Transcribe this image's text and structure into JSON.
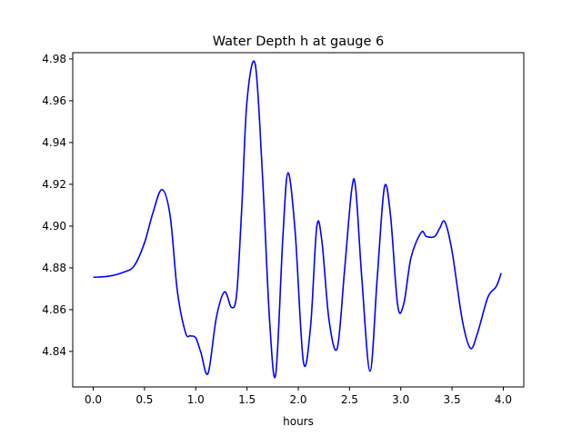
{
  "chart_data": {
    "type": "line",
    "title": "Water Depth h at gauge 6",
    "xlabel": "hours",
    "ylabel": "",
    "xlim": [
      -0.2,
      4.2
    ],
    "ylim": [
      4.823,
      4.983
    ],
    "xticks": [
      0.0,
      0.5,
      1.0,
      1.5,
      2.0,
      2.5,
      3.0,
      3.5,
      4.0
    ],
    "xtick_labels": [
      "0.0",
      "0.5",
      "1.0",
      "1.5",
      "2.0",
      "2.5",
      "3.0",
      "3.5",
      "4.0"
    ],
    "yticks": [
      4.84,
      4.86,
      4.88,
      4.9,
      4.92,
      4.94,
      4.96,
      4.98
    ],
    "ytick_labels": [
      "4.84",
      "4.86",
      "4.88",
      "4.90",
      "4.92",
      "4.94",
      "4.96",
      "4.98"
    ],
    "grid": false,
    "series": [
      {
        "color": "#0000ff",
        "x": [
          0.0,
          0.15,
          0.3,
          0.4,
          0.5,
          0.58,
          0.67,
          0.75,
          0.82,
          0.9,
          0.95,
          1.0,
          1.05,
          1.12,
          1.2,
          1.28,
          1.35,
          1.4,
          1.45,
          1.5,
          1.58,
          1.65,
          1.72,
          1.78,
          1.85,
          1.9,
          1.97,
          2.05,
          2.12,
          2.18,
          2.23,
          2.3,
          2.38,
          2.45,
          2.52,
          2.56,
          2.62,
          2.7,
          2.77,
          2.84,
          2.9,
          2.97,
          3.03,
          3.1,
          3.2,
          3.25,
          3.33,
          3.38,
          3.43,
          3.5,
          3.6,
          3.68,
          3.75,
          3.85,
          3.93,
          3.98
        ],
        "y": [
          4.8755,
          4.876,
          4.878,
          4.881,
          4.892,
          4.906,
          4.9175,
          4.905,
          4.869,
          4.849,
          4.8475,
          4.8465,
          4.8395,
          4.8295,
          4.856,
          4.8685,
          4.861,
          4.868,
          4.91,
          4.96,
          4.9775,
          4.925,
          4.855,
          4.829,
          4.895,
          4.9255,
          4.897,
          4.835,
          4.852,
          4.8995,
          4.893,
          4.855,
          4.8415,
          4.878,
          4.917,
          4.918,
          4.875,
          4.8305,
          4.875,
          4.9185,
          4.905,
          4.862,
          4.863,
          4.885,
          4.897,
          4.895,
          4.895,
          4.899,
          4.902,
          4.888,
          4.855,
          4.8415,
          4.849,
          4.866,
          4.871,
          4.8775
        ]
      }
    ]
  }
}
